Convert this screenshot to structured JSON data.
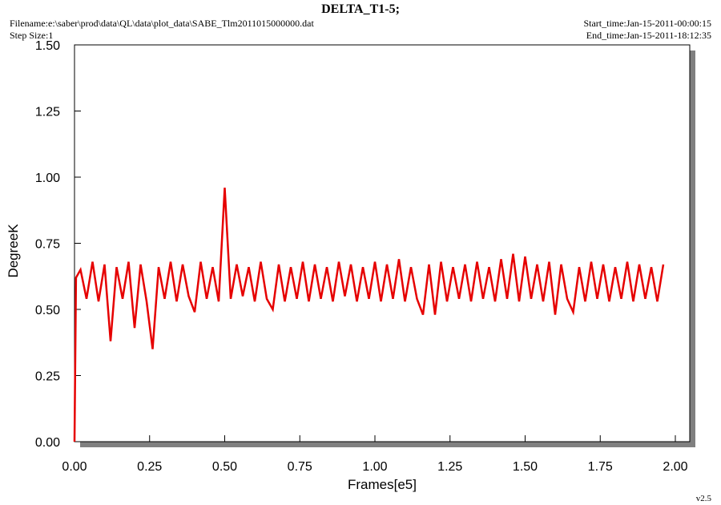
{
  "chart_data": {
    "type": "line",
    "title": "DELTA_T1-5;",
    "filename": "Filename:e:\\saber\\prod\\data\\QL\\data\\plot_data\\SABE_Tlm2011015000000.dat",
    "step_size": "Step Size:1",
    "start_time": "Start_time:Jan-15-2011-00:00:15",
    "end_time": "End_time:Jan-15-2011-18:12:35",
    "version": "v2.5",
    "xlabel": "Frames[e5]",
    "ylabel": "DegreeK",
    "color": "#e60000",
    "xlim": [
      0,
      2.048
    ],
    "ylim": [
      0,
      1.5
    ],
    "xticks": [
      {
        "value": 0,
        "label": "0.00"
      },
      {
        "value": 0.25,
        "label": "0.25"
      },
      {
        "value": 0.5,
        "label": "0.50"
      },
      {
        "value": 0.75,
        "label": "0.75"
      },
      {
        "value": 1,
        "label": "1.00"
      },
      {
        "value": 1.25,
        "label": "1.25"
      },
      {
        "value": 1.5,
        "label": "1.50"
      },
      {
        "value": 1.75,
        "label": "1.75"
      },
      {
        "value": 2,
        "label": "2.00"
      }
    ],
    "yticks": [
      {
        "value": 0,
        "label": "0.00"
      },
      {
        "value": 0.25,
        "label": "0.25"
      },
      {
        "value": 0.5,
        "label": "0.50"
      },
      {
        "value": 0.75,
        "label": "0.75"
      },
      {
        "value": 1,
        "label": "1.00"
      },
      {
        "value": 1.25,
        "label": "1.25"
      },
      {
        "value": 1.5,
        "label": "1.50"
      }
    ],
    "x": [
      0,
      0.005,
      0.02,
      0.04,
      0.06,
      0.08,
      0.1,
      0.12,
      0.14,
      0.16,
      0.18,
      0.2,
      0.22,
      0.24,
      0.26,
      0.28,
      0.3,
      0.32,
      0.34,
      0.36,
      0.38,
      0.4,
      0.42,
      0.44,
      0.46,
      0.48,
      0.5,
      0.52,
      0.54,
      0.56,
      0.58,
      0.6,
      0.62,
      0.64,
      0.66,
      0.68,
      0.7,
      0.72,
      0.74,
      0.76,
      0.78,
      0.8,
      0.82,
      0.84,
      0.86,
      0.88,
      0.9,
      0.92,
      0.94,
      0.96,
      0.98,
      1,
      1.02,
      1.04,
      1.06,
      1.08,
      1.1,
      1.12,
      1.14,
      1.16,
      1.18,
      1.2,
      1.22,
      1.24,
      1.26,
      1.28,
      1.3,
      1.32,
      1.34,
      1.36,
      1.38,
      1.4,
      1.42,
      1.44,
      1.46,
      1.48,
      1.5,
      1.52,
      1.54,
      1.56,
      1.58,
      1.6,
      1.62,
      1.64,
      1.66,
      1.68,
      1.7,
      1.72,
      1.74,
      1.76,
      1.78,
      1.8,
      1.82,
      1.84,
      1.86,
      1.88,
      1.9,
      1.92,
      1.94,
      1.96
    ],
    "values": [
      0,
      0.62,
      0.65,
      0.54,
      0.68,
      0.53,
      0.67,
      0.38,
      0.66,
      0.54,
      0.68,
      0.43,
      0.67,
      0.53,
      0.35,
      0.66,
      0.54,
      0.68,
      0.53,
      0.67,
      0.55,
      0.49,
      0.68,
      0.54,
      0.66,
      0.53,
      0.96,
      0.54,
      0.67,
      0.55,
      0.66,
      0.53,
      0.68,
      0.54,
      0.5,
      0.67,
      0.53,
      0.66,
      0.54,
      0.68,
      0.53,
      0.67,
      0.54,
      0.66,
      0.53,
      0.68,
      0.55,
      0.67,
      0.53,
      0.66,
      0.54,
      0.68,
      0.53,
      0.67,
      0.54,
      0.69,
      0.53,
      0.66,
      0.54,
      0.48,
      0.67,
      0.48,
      0.68,
      0.53,
      0.66,
      0.54,
      0.67,
      0.53,
      0.68,
      0.54,
      0.66,
      0.53,
      0.69,
      0.54,
      0.71,
      0.53,
      0.7,
      0.54,
      0.67,
      0.53,
      0.68,
      0.48,
      0.67,
      0.54,
      0.49,
      0.66,
      0.53,
      0.68,
      0.54,
      0.67,
      0.53,
      0.66,
      0.54,
      0.68,
      0.53,
      0.67,
      0.54,
      0.66,
      0.53,
      0.67
    ]
  }
}
